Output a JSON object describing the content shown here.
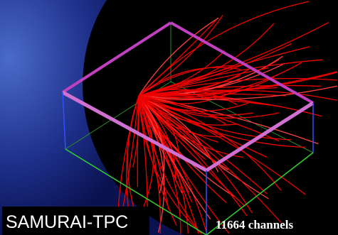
{
  "labels": {
    "detector": "SAMURAI-TPC",
    "channels": "11664 channels"
  }
}
